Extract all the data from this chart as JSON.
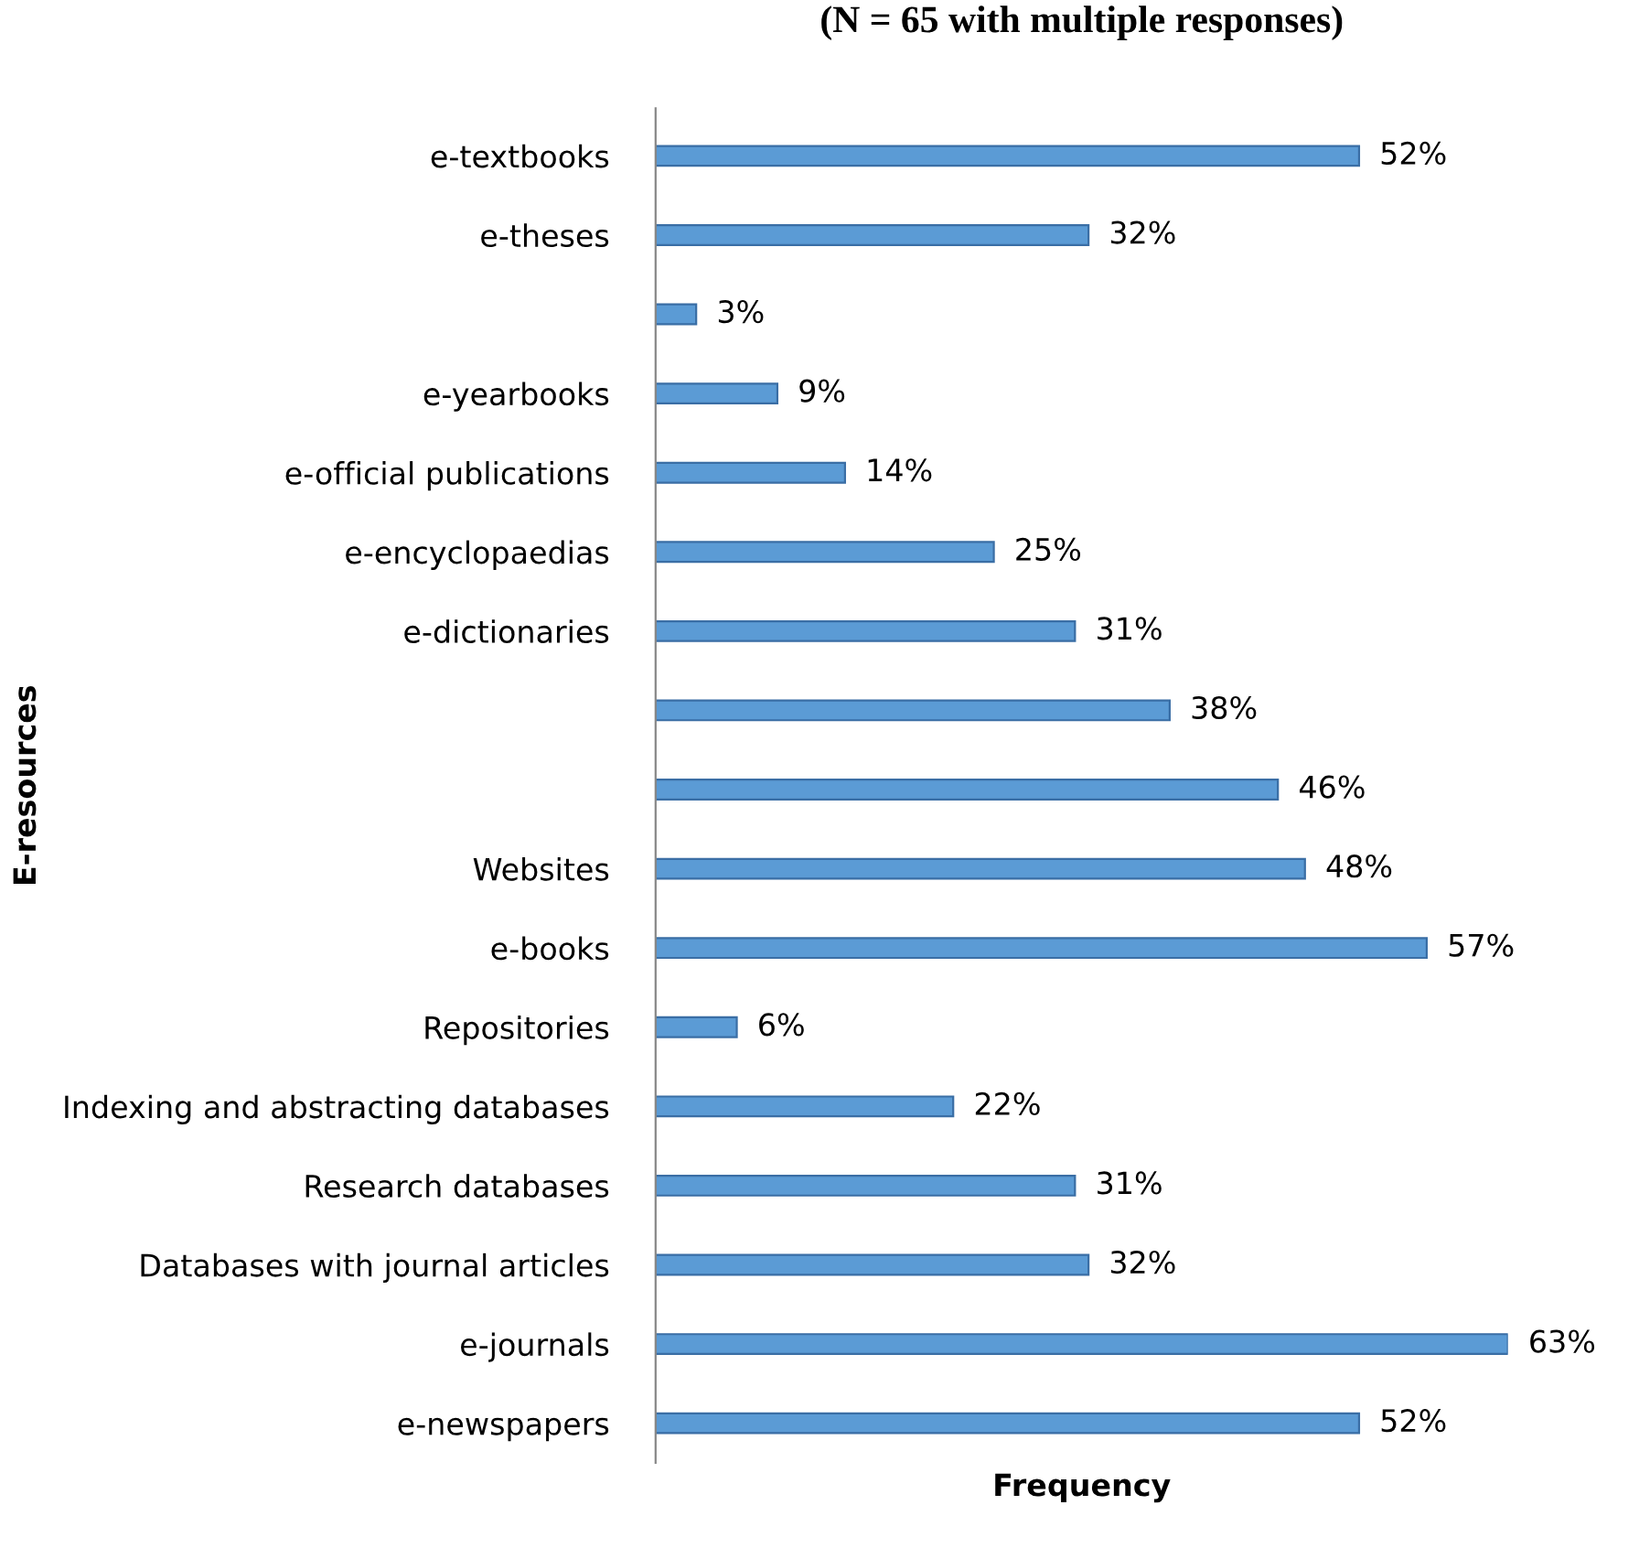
{
  "chart_data": {
    "type": "bar",
    "orientation": "horizontal",
    "title": "(N = 65 with multiple responses)",
    "xlabel": "Frequency",
    "ylabel": "E-resources",
    "categories": [
      "e-textbooks",
      "e-theses",
      null,
      "e-yearbooks",
      "e-official publications",
      "e-encyclopaedias",
      "e-dictionaries",
      null,
      null,
      "Websites",
      "e-books",
      "Repositories",
      "Indexing and abstracting databases",
      "Research databases",
      "Databases with journal articles",
      "e-journals",
      "e-newspapers"
    ],
    "values": [
      52,
      32,
      3,
      9,
      14,
      25,
      31,
      38,
      46,
      48,
      57,
      6,
      22,
      31,
      32,
      63,
      52
    ],
    "value_labels": [
      "52%",
      "32%",
      "3%",
      "9%",
      "14%",
      "25%",
      "31%",
      "38%",
      "46%",
      "48%",
      "57%",
      "6%",
      "22%",
      "31%",
      "32%",
      "63%",
      "52%"
    ],
    "color": "#5b9bd5",
    "grid": false
  }
}
